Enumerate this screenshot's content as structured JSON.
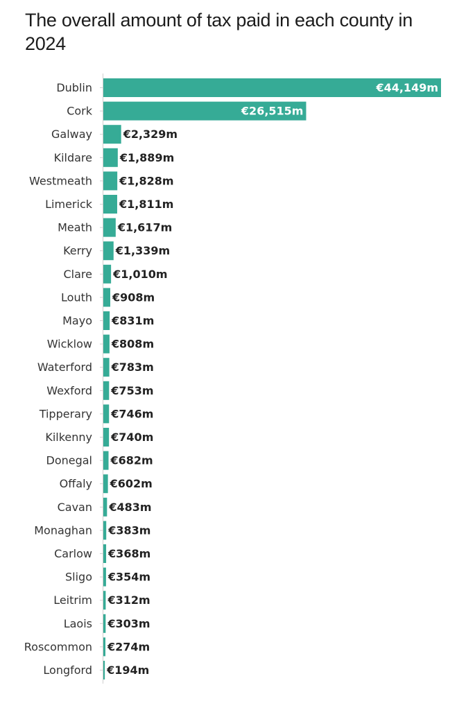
{
  "chart_data": {
    "type": "bar",
    "orientation": "horizontal",
    "title": "The overall amount of tax paid in each county in 2024",
    "categories": [
      "Dublin",
      "Cork",
      "Galway",
      "Kildare",
      "Westmeath",
      "Limerick",
      "Meath",
      "Kerry",
      "Clare",
      "Louth",
      "Mayo",
      "Wicklow",
      "Waterford",
      "Wexford",
      "Tipperary",
      "Kilkenny",
      "Donegal",
      "Offaly",
      "Cavan",
      "Monaghan",
      "Carlow",
      "Sligo",
      "Leitrim",
      "Laois",
      "Roscommon",
      "Longford"
    ],
    "values": [
      44149,
      26515,
      2329,
      1889,
      1828,
      1811,
      1617,
      1339,
      1010,
      908,
      831,
      808,
      783,
      753,
      746,
      740,
      682,
      602,
      483,
      383,
      368,
      354,
      312,
      303,
      274,
      194
    ],
    "value_labels": [
      "€44,149m",
      "€26,515m",
      "€2,329m",
      "€1,889m",
      "€1,828m",
      "€1,811m",
      "€1,617m",
      "€1,339m",
      "€1,010m",
      "€908m",
      "€831m",
      "€808m",
      "€783m",
      "€753m",
      "€746m",
      "€740m",
      "€682m",
      "€602m",
      "€483m",
      "€383m",
      "€368m",
      "€354m",
      "€312m",
      "€303m",
      "€274m",
      "€194m"
    ],
    "xlim": [
      0,
      44149
    ],
    "grid": false,
    "bar_color": "#36ab96",
    "label_inside_color": "#ffffff",
    "label_outside_color": "#222222"
  }
}
